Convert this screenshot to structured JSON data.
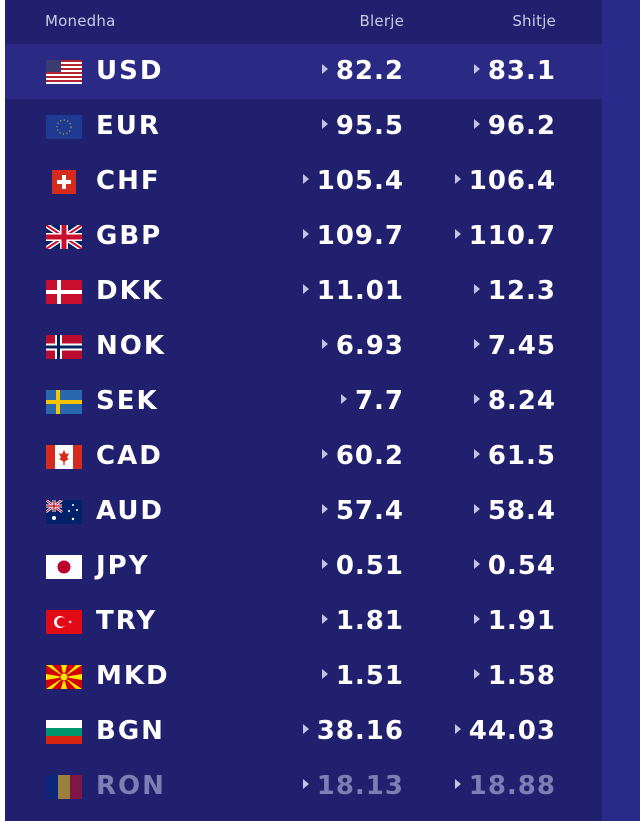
{
  "table": {
    "headers": {
      "currency": "Monedha",
      "buy": "Blerje",
      "sell": "Shitje"
    },
    "rows": [
      {
        "code": "USD",
        "buy": "82.2",
        "sell": "83.1",
        "flag": "us-flag-icon"
      },
      {
        "code": "EUR",
        "buy": "95.5",
        "sell": "96.2",
        "flag": "eu-flag-icon"
      },
      {
        "code": "CHF",
        "buy": "105.4",
        "sell": "106.4",
        "flag": "ch-flag-icon"
      },
      {
        "code": "GBP",
        "buy": "109.7",
        "sell": "110.7",
        "flag": "gb-flag-icon"
      },
      {
        "code": "DKK",
        "buy": "11.01",
        "sell": "12.3",
        "flag": "dk-flag-icon"
      },
      {
        "code": "NOK",
        "buy": "6.93",
        "sell": "7.45",
        "flag": "no-flag-icon"
      },
      {
        "code": "SEK",
        "buy": "7.7",
        "sell": "8.24",
        "flag": "se-flag-icon"
      },
      {
        "code": "CAD",
        "buy": "60.2",
        "sell": "61.5",
        "flag": "ca-flag-icon"
      },
      {
        "code": "AUD",
        "buy": "57.4",
        "sell": "58.4",
        "flag": "au-flag-icon"
      },
      {
        "code": "JPY",
        "buy": "0.51",
        "sell": "0.54",
        "flag": "jp-flag-icon"
      },
      {
        "code": "TRY",
        "buy": "1.81",
        "sell": "1.91",
        "flag": "tr-flag-icon"
      },
      {
        "code": "MKD",
        "buy": "1.51",
        "sell": "1.58",
        "flag": "mk-flag-icon"
      },
      {
        "code": "BGN",
        "buy": "38.16",
        "sell": "44.03",
        "flag": "bg-flag-icon"
      },
      {
        "code": "RON",
        "buy": "18.13",
        "sell": "18.88",
        "flag": "ro-flag-icon"
      }
    ]
  },
  "colors": {
    "background": "#20206e",
    "highlight_row": "#2a2a85",
    "text": "#ffffff",
    "header_text": "#c9cbe6",
    "arrow": "#c0c2e0"
  }
}
